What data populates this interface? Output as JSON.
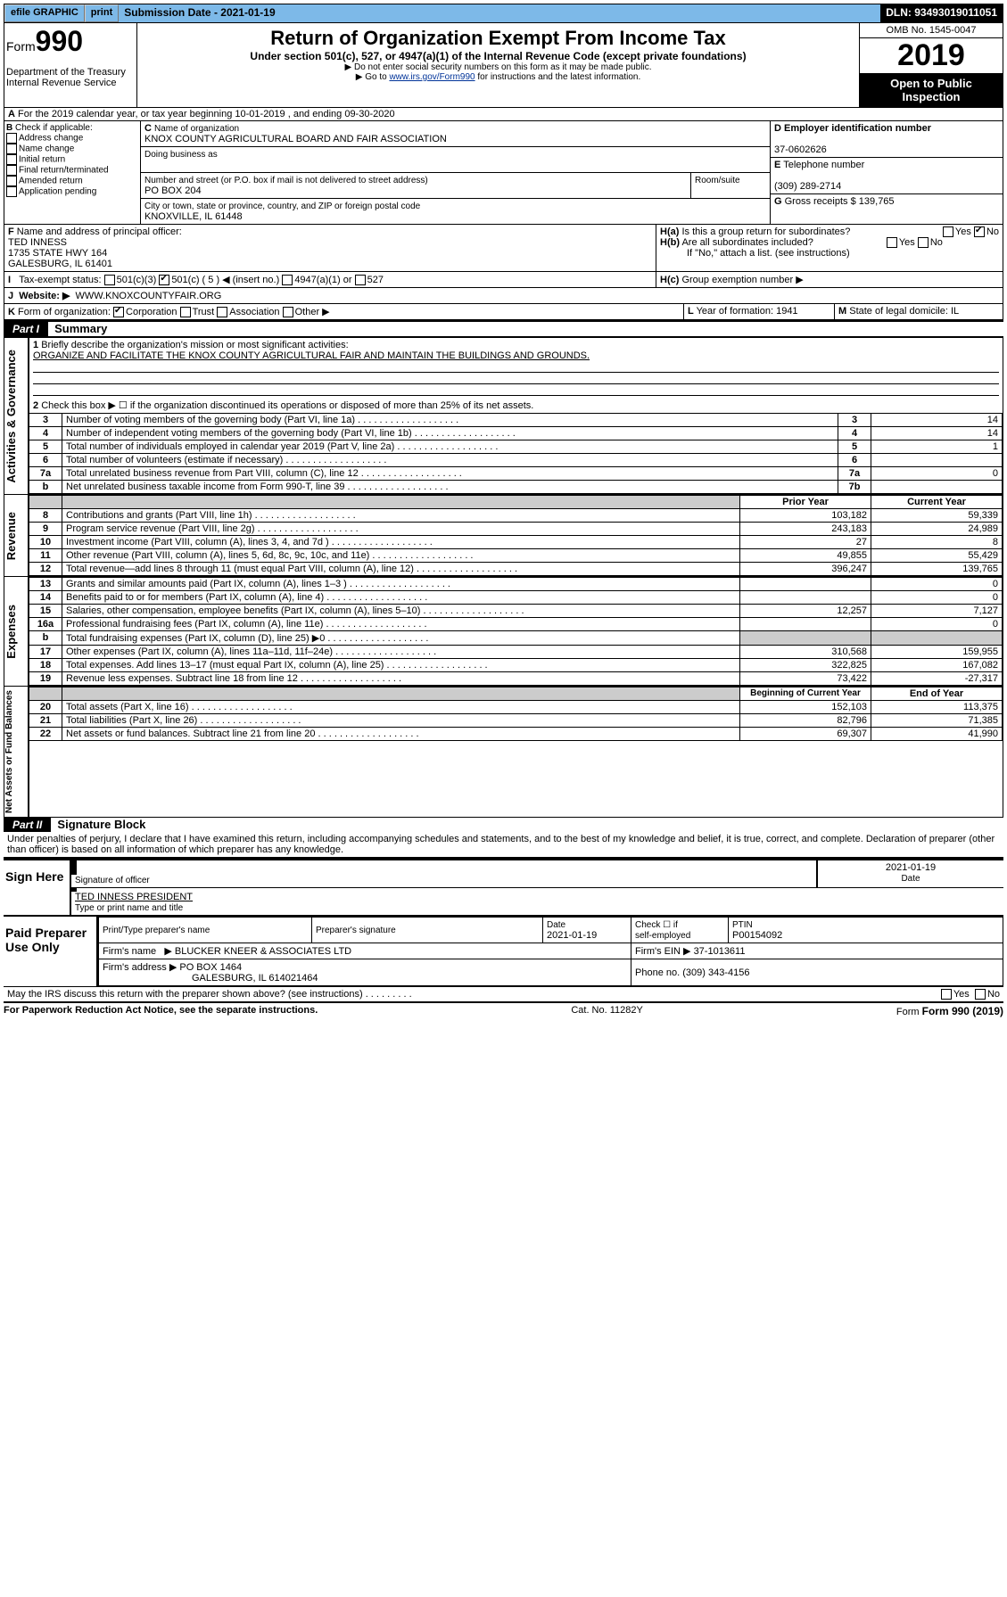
{
  "topbar": {
    "efile": "efile GRAPHIC",
    "print": "print",
    "subdate_label": "Submission Date - 2021-01-19",
    "dln": "DLN: 93493019011051"
  },
  "header": {
    "form_prefix": "Form",
    "form_no": "990",
    "title": "Return of Organization Exempt From Income Tax",
    "sub1": "Under section 501(c), 527, or 4947(a)(1) of the Internal Revenue Code (except private foundations)",
    "sub2": "▶ Do not enter social security numbers on this form as it may be made public.",
    "sub3_pre": "▶ Go to ",
    "sub3_link": "www.irs.gov/Form990",
    "sub3_post": " for instructions and the latest information.",
    "dept1": "Department of the Treasury",
    "dept2": "Internal Revenue Service",
    "omb": "OMB No. 1545-0047",
    "year": "2019",
    "open1": "Open to Public",
    "open2": "Inspection"
  },
  "A": {
    "line": "For the 2019 calendar year, or tax year beginning 10-01-2019    , and ending 09-30-2020"
  },
  "B": {
    "label": "Check if applicable:",
    "items": [
      "Address change",
      "Name change",
      "Initial return",
      "Final return/terminated",
      "Amended return",
      "Application pending"
    ],
    "letter": "B"
  },
  "C": {
    "name_label": "Name of organization",
    "name": "KNOX COUNTY AGRICULTURAL BOARD AND FAIR ASSOCIATION",
    "dba_label": "Doing business as",
    "addr_label": "Number and street (or P.O. box if mail is not delivered to street address)",
    "room_label": "Room/suite",
    "addr": "PO BOX 204",
    "city_label": "City or town, state or province, country, and ZIP or foreign postal code",
    "city": "KNOXVILLE, IL  61448",
    "letter": "C"
  },
  "D": {
    "label": "Employer identification number",
    "value": "37-0602626",
    "letter": "D"
  },
  "E": {
    "label": "Telephone number",
    "value": "(309) 289-2714",
    "letter": "E"
  },
  "G": {
    "label": "Gross receipts $",
    "value": "139,765",
    "letter": "G"
  },
  "F": {
    "label": "Name and address of principal officer:",
    "name": "TED INNESS",
    "addr1": "1735 STATE HWY 164",
    "addr2": "GALESBURG, IL  61401",
    "letter": "F"
  },
  "H": {
    "a": "Is this a group return for subordinates?",
    "b": "Are all subordinates included?",
    "b_note": "If \"No,\" attach a list. (see instructions)",
    "c": "Group exemption number ▶",
    "yes": "Yes",
    "no": "No"
  },
  "I": {
    "label": "Tax-exempt status:",
    "opts": [
      "501(c)(3)",
      "501(c) ( 5 ) ◀ (insert no.)",
      "4947(a)(1) or",
      "527"
    ]
  },
  "J": {
    "label": "Website: ▶",
    "value": "WWW.KNOXCOUNTYFAIR.ORG"
  },
  "K": {
    "label": "Form of organization:",
    "opts": [
      "Corporation",
      "Trust",
      "Association",
      "Other ▶"
    ]
  },
  "L": {
    "label": "Year of formation:",
    "value": "1941"
  },
  "M": {
    "label": "State of legal domicile:",
    "value": "IL"
  },
  "partI": {
    "part": "Part I",
    "title": "Summary"
  },
  "p1": {
    "q1": "Briefly describe the organization's mission or most significant activities:",
    "q1a": "ORGANIZE AND FACILITATE THE KNOX COUNTY AGRICULTURAL FAIR AND MAINTAIN THE BUILDINGS AND GROUNDS.",
    "q2": "Check this box ▶ ☐  if the organization discontinued its operations or disposed of more than 25% of its net assets.",
    "rows_gov": [
      {
        "n": "3",
        "t": "Number of voting members of the governing body (Part VI, line 1a)",
        "box": "3",
        "v": "14"
      },
      {
        "n": "4",
        "t": "Number of independent voting members of the governing body (Part VI, line 1b)",
        "box": "4",
        "v": "14"
      },
      {
        "n": "5",
        "t": "Total number of individuals employed in calendar year 2019 (Part V, line 2a)",
        "box": "5",
        "v": "1"
      },
      {
        "n": "6",
        "t": "Total number of volunteers (estimate if necessary)",
        "box": "6",
        "v": ""
      },
      {
        "n": "7a",
        "t": "Total unrelated business revenue from Part VIII, column (C), line 12",
        "box": "7a",
        "v": "0"
      },
      {
        "n": "b",
        "t": "Net unrelated business taxable income from Form 990-T, line 39",
        "box": "7b",
        "v": ""
      }
    ],
    "hdr_prior": "Prior Year",
    "hdr_curr": "Current Year",
    "rev": [
      {
        "n": "8",
        "t": "Contributions and grants (Part VIII, line 1h)",
        "p": "103,182",
        "c": "59,339"
      },
      {
        "n": "9",
        "t": "Program service revenue (Part VIII, line 2g)",
        "p": "243,183",
        "c": "24,989"
      },
      {
        "n": "10",
        "t": "Investment income (Part VIII, column (A), lines 3, 4, and 7d )",
        "p": "27",
        "c": "8"
      },
      {
        "n": "11",
        "t": "Other revenue (Part VIII, column (A), lines 5, 6d, 8c, 9c, 10c, and 11e)",
        "p": "49,855",
        "c": "55,429"
      },
      {
        "n": "12",
        "t": "Total revenue—add lines 8 through 11 (must equal Part VIII, column (A), line 12)",
        "p": "396,247",
        "c": "139,765"
      }
    ],
    "exp": [
      {
        "n": "13",
        "t": "Grants and similar amounts paid (Part IX, column (A), lines 1–3 )",
        "p": "",
        "c": "0"
      },
      {
        "n": "14",
        "t": "Benefits paid to or for members (Part IX, column (A), line 4)",
        "p": "",
        "c": "0"
      },
      {
        "n": "15",
        "t": "Salaries, other compensation, employee benefits (Part IX, column (A), lines 5–10)",
        "p": "12,257",
        "c": "7,127"
      },
      {
        "n": "16a",
        "t": "Professional fundraising fees (Part IX, column (A), line 11e)",
        "p": "",
        "c": "0"
      },
      {
        "n": "b",
        "t": "Total fundraising expenses (Part IX, column (D), line 25) ▶0",
        "p": "grey",
        "c": "grey"
      },
      {
        "n": "17",
        "t": "Other expenses (Part IX, column (A), lines 11a–11d, 11f–24e)",
        "p": "310,568",
        "c": "159,955"
      },
      {
        "n": "18",
        "t": "Total expenses. Add lines 13–17 (must equal Part IX, column (A), line 25)",
        "p": "322,825",
        "c": "167,082"
      },
      {
        "n": "19",
        "t": "Revenue less expenses. Subtract line 18 from line 12",
        "p": "73,422",
        "c": "-27,317"
      }
    ],
    "hdr_beg": "Beginning of Current Year",
    "hdr_end": "End of Year",
    "na": [
      {
        "n": "20",
        "t": "Total assets (Part X, line 16)",
        "p": "152,103",
        "c": "113,375"
      },
      {
        "n": "21",
        "t": "Total liabilities (Part X, line 26)",
        "p": "82,796",
        "c": "71,385"
      },
      {
        "n": "22",
        "t": "Net assets or fund balances. Subtract line 21 from line 20",
        "p": "69,307",
        "c": "41,990"
      }
    ],
    "side_gov": "Activities & Governance",
    "side_rev": "Revenue",
    "side_exp": "Expenses",
    "side_na": "Net Assets or Fund Balances"
  },
  "partII": {
    "part": "Part II",
    "title": "Signature Block",
    "decl": "Under penalties of perjury, I declare that I have examined this return, including accompanying schedules and statements, and to the best of my knowledge and belief, it is true, correct, and complete. Declaration of preparer (other than officer) is based on all information of which preparer has any knowledge."
  },
  "sign": {
    "here": "Sign Here",
    "sig_officer": "Signature of officer",
    "date": "2021-01-19",
    "date_label": "Date",
    "name": "TED INNESS  PRESIDENT",
    "name_label": "Type or print name and title"
  },
  "paid": {
    "title": "Paid Preparer Use Only",
    "h1": "Print/Type preparer's name",
    "h2": "Preparer's signature",
    "h3": "Date",
    "h4_a": "Check ☐ if",
    "h4_b": "self-employed",
    "h5": "PTIN",
    "date": "2021-01-19",
    "ptin": "P00154092",
    "firm_label": "Firm's name",
    "firm": "▶ BLUCKER KNEER & ASSOCIATES LTD",
    "ein_label": "Firm's EIN ▶",
    "ein": "37-1013611",
    "addr_label": "Firm's address",
    "addr1": "▶ PO BOX 1464",
    "addr2": "GALESBURG, IL  614021464",
    "phone_label": "Phone no.",
    "phone": "(309) 343-4156"
  },
  "discuss": {
    "q": "May the IRS discuss this return with the preparer shown above? (see instructions)",
    "yes": "Yes",
    "no": "No"
  },
  "footer": {
    "l": "For Paperwork Reduction Act Notice, see the separate instructions.",
    "m": "Cat. No. 11282Y",
    "r": "Form 990 (2019)"
  }
}
